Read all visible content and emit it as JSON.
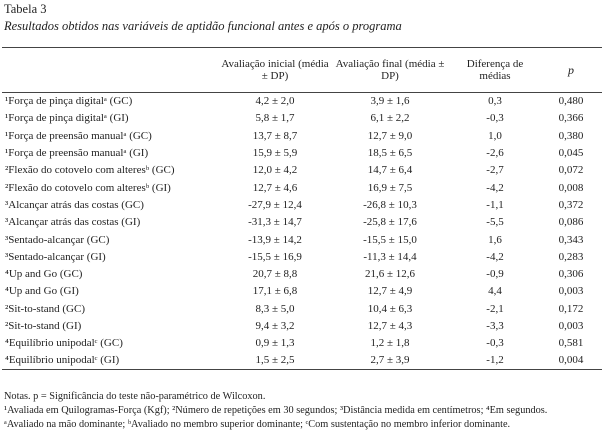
{
  "header": {
    "title": "Tabela 3",
    "subtitle": "Resultados obtidos nas variáveis de aptidão funcional antes e após o programa"
  },
  "table": {
    "columns": [
      "",
      "Avaliação inicial (média ± DP)",
      "Avaliação final (média ± DP)",
      "Diferença de médias",
      "p"
    ],
    "rows": [
      [
        "¹Força de pinça digitalᵃ (GC)",
        "4,2 ± 2,0",
        "3,9 ± 1,6",
        "0,3",
        "0,480"
      ],
      [
        "¹Força de pinça digitalᵃ (GI)",
        "5,8 ± 1,7",
        "6,1 ± 2,2",
        "-0,3",
        "0,366"
      ],
      [
        "¹Força de preensão manualᵃ (GC)",
        "13,7 ± 8,7",
        "12,7 ± 9,0",
        "1,0",
        "0,380"
      ],
      [
        "¹Força de preensão manualᵃ (GI)",
        "15,9 ± 5,9",
        "18,5 ± 6,5",
        "-2,6",
        "0,045"
      ],
      [
        "²Flexão do cotovelo com alteresᵇ (GC)",
        "12,0 ± 4,2",
        "14,7 ± 6,4",
        "-2,7",
        "0,072"
      ],
      [
        "²Flexão do cotovelo com alteresᵇ (GI)",
        "12,7 ± 4,6",
        "16,9 ± 7,5",
        "-4,2",
        "0,008"
      ],
      [
        "³Alcançar atrás das costas (GC)",
        "-27,9 ± 12,4",
        "-26,8 ± 10,3",
        "-1,1",
        "0,372"
      ],
      [
        "³Alcançar atrás das costas (GI)",
        "-31,3 ± 14,7",
        "-25,8 ± 17,6",
        "-5,5",
        "0,086"
      ],
      [
        "³Sentado-alcançar (GC)",
        "-13,9 ± 14,2",
        "-15,5 ± 15,0",
        "1,6",
        "0,343"
      ],
      [
        "³Sentado-alcançar (GI)",
        "-15,5 ± 16,9",
        "-11,3 ± 14,4",
        "-4,2",
        "0,283"
      ],
      [
        "⁴Up and Go (GC)",
        "20,7 ± 8,8",
        "21,6 ± 12,6",
        "-0,9",
        "0,306"
      ],
      [
        "⁴Up and Go (GI)",
        "17,1 ± 6,8",
        "12,7 ± 4,9",
        "4,4",
        "0,003"
      ],
      [
        "²Sit-to-stand (GC)",
        "8,3 ± 5,0",
        "10,4 ± 6,3",
        "-2,1",
        "0,172"
      ],
      [
        "²Sit-to-stand (GI)",
        "9,4 ± 3,2",
        "12,7 ± 4,3",
        "-3,3",
        "0,003"
      ],
      [
        "⁴Equilíbrio unipodalᶜ (GC)",
        "0,9 ± 1,3",
        "1,2 ± 1,8",
        "-0,3",
        "0,581"
      ],
      [
        "⁴Equilíbrio unipodalᶜ (GI)",
        "1,5 ± 2,5",
        "2,7 ± 3,9",
        "-1,2",
        "0,004"
      ]
    ]
  },
  "notes": [
    "Notas. p = Significância do teste não-paramétrico de Wilcoxon.",
    "¹Avaliada em Quilogramas-Força (Kgf); ²Número de repetições em 30 segundos; ³Distância medida em centímetros; ⁴Em segundos.",
    "ᵃAvaliado na mão dominante; ᵇAvaliado no membro superior dominante; ᶜCom sustentação no membro inferior dominante."
  ]
}
